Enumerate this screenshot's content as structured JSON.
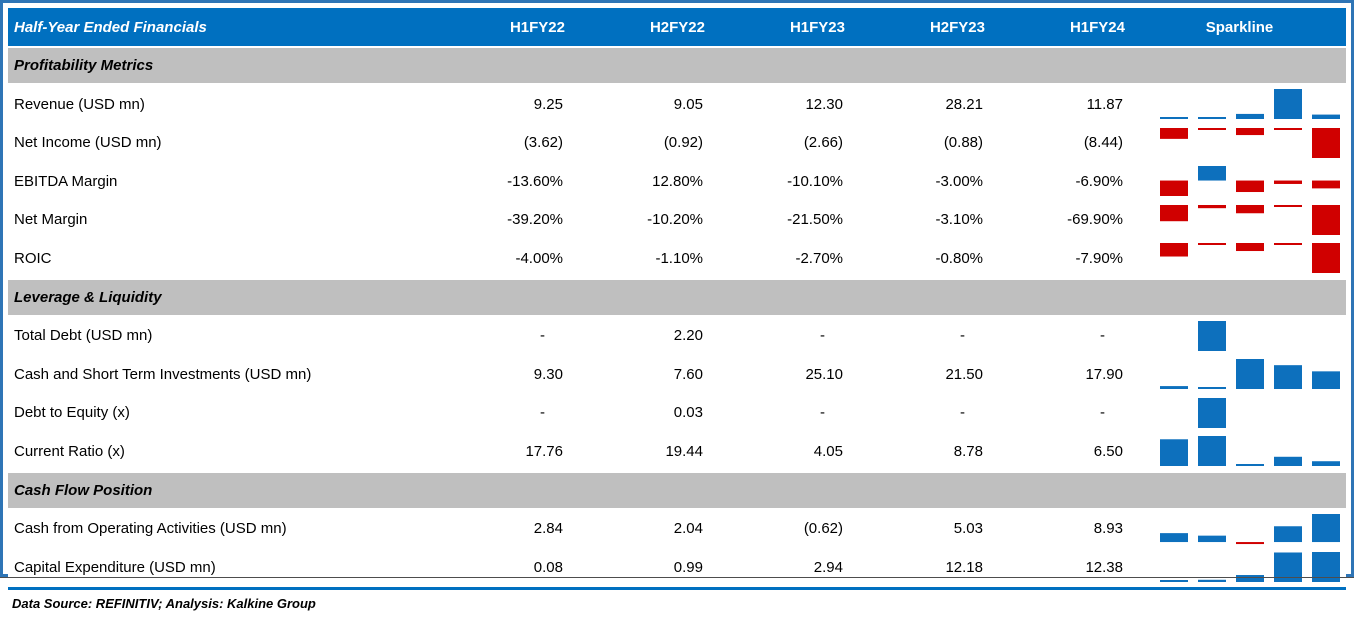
{
  "header": {
    "title": "Half-Year Ended Financials",
    "columns": [
      "H1FY22",
      "H2FY22",
      "H1FY23",
      "H2FY23",
      "H1FY24"
    ],
    "sparkline_label": "Sparkline"
  },
  "footer": {
    "source_note": "Data Source: REFINITIV; Analysis: Kalkine Group"
  },
  "colors": {
    "header_bg": "#0070C0",
    "header_text": "#FFFFFF",
    "section_bg": "#BFBFBF",
    "outer_border": "#2E75B6",
    "footer_line": "#0070C0",
    "sparkline_positive": "#0D70BD",
    "sparkline_negative": "#D00000"
  },
  "chart_data": {
    "type": "table",
    "title": "Half-Year Ended Financials",
    "columns": [
      "H1FY22",
      "H2FY22",
      "H1FY23",
      "H2FY23",
      "H1FY24"
    ],
    "sparkline_type": "bar",
    "sections": [
      {
        "name": "Profitability Metrics",
        "rows": [
          {
            "label": "Revenue (USD mn)",
            "display": [
              "9.25",
              "9.05",
              "12.30",
              "28.21",
              "11.87"
            ],
            "values": [
              9.25,
              9.05,
              12.3,
              28.21,
              11.87
            ]
          },
          {
            "label": "Net Income (USD mn)",
            "display": [
              "(3.62)",
              "(0.92)",
              "(2.66)",
              "(0.88)",
              "(8.44)"
            ],
            "values": [
              -3.62,
              -0.92,
              -2.66,
              -0.88,
              -8.44
            ]
          },
          {
            "label": "EBITDA Margin",
            "display": [
              "-13.60%",
              "12.80%",
              "-10.10%",
              "-3.00%",
              "-6.90%"
            ],
            "values": [
              -13.6,
              12.8,
              -10.1,
              -3.0,
              -6.9
            ]
          },
          {
            "label": "Net Margin",
            "display": [
              "-39.20%",
              "-10.20%",
              "-21.50%",
              "-3.10%",
              "-69.90%"
            ],
            "values": [
              -39.2,
              -10.2,
              -21.5,
              -3.1,
              -69.9
            ]
          },
          {
            "label": "ROIC",
            "display": [
              "-4.00%",
              "-1.10%",
              "-2.70%",
              "-0.80%",
              "-7.90%"
            ],
            "values": [
              -4.0,
              -1.1,
              -2.7,
              -0.8,
              -7.9
            ]
          }
        ]
      },
      {
        "name": "Leverage & Liquidity",
        "rows": [
          {
            "label": "Total Debt (USD mn)",
            "display": [
              "-",
              "2.20",
              "-",
              "-",
              "-"
            ],
            "values": [
              null,
              2.2,
              null,
              null,
              null
            ]
          },
          {
            "label": "Cash and Short Term Investments (USD mn)",
            "display": [
              "9.30",
              "7.60",
              "25.10",
              "21.50",
              "17.90"
            ],
            "values": [
              9.3,
              7.6,
              25.1,
              21.5,
              17.9
            ]
          },
          {
            "label": "Debt to Equity (x)",
            "display": [
              "-",
              "0.03",
              "-",
              "-",
              "-"
            ],
            "values": [
              null,
              0.03,
              null,
              null,
              null
            ]
          },
          {
            "label": "Current Ratio (x)",
            "display": [
              "17.76",
              "19.44",
              "4.05",
              "8.78",
              "6.50"
            ],
            "values": [
              17.76,
              19.44,
              4.05,
              8.78,
              6.5
            ]
          }
        ]
      },
      {
        "name": "Cash Flow Position",
        "rows": [
          {
            "label": "Cash from Operating Activities (USD mn)",
            "display": [
              "2.84",
              "2.04",
              "(0.62)",
              "5.03",
              "8.93"
            ],
            "values": [
              2.84,
              2.04,
              -0.62,
              5.03,
              8.93
            ]
          },
          {
            "label": "Capital Expenditure (USD mn)",
            "display": [
              "0.08",
              "0.99",
              "2.94",
              "12.18",
              "12.38"
            ],
            "values": [
              0.08,
              0.99,
              2.94,
              12.18,
              12.38
            ]
          }
        ]
      }
    ]
  }
}
